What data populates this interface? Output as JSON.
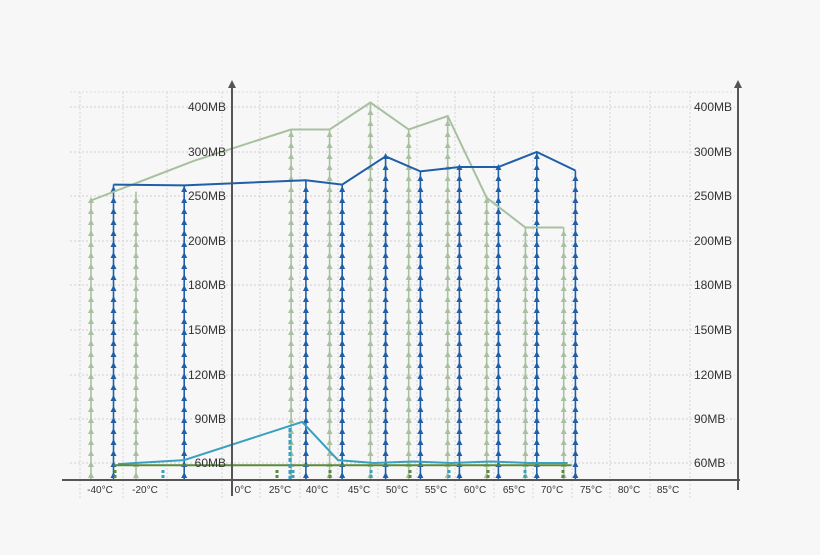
{
  "chart_data": {
    "type": "line",
    "title": "",
    "xlabel": "",
    "ylabel": "",
    "grid": true,
    "x_categories": [
      "-40°C",
      "-20°C",
      "0°C",
      "25°C",
      "40°C",
      "45°C",
      "50°C",
      "55°C",
      "60°C",
      "65°C",
      "70°C",
      "75°C",
      "80°C",
      "85°C"
    ],
    "y_ticks_left": [
      "60MB",
      "90MB",
      "120MB",
      "150MB",
      "180MB",
      "200MB",
      "250MB",
      "300MB",
      "400MB"
    ],
    "y_ticks_right": [
      "60MB",
      "90MB",
      "120MB",
      "150MB",
      "180MB",
      "200MB",
      "250MB",
      "300MB",
      "400MB"
    ],
    "series": [
      {
        "color": "#a8c0a0",
        "x": [
          -0.2,
          1.5,
          3.3,
          4.3,
          5.3,
          6.3,
          7.3,
          8.3,
          9.3,
          10.3
        ],
        "values": [
          245,
          290,
          350,
          350,
          410,
          350,
          380,
          248,
          215,
          215
        ]
      },
      {
        "color": "#1f5fa8",
        "x": [
          0.3,
          1.4,
          3.7,
          4.6,
          5.7,
          6.6,
          7.6,
          8.6,
          9.6,
          10.6
        ],
        "values": [
          263,
          262,
          268,
          263,
          295,
          278,
          283,
          283,
          300,
          279
        ]
      },
      {
        "color": "#3aa0c0",
        "x": [
          0.4,
          1.4,
          3.6,
          4.5,
          5.4,
          6.4,
          7.4,
          8.4,
          9.4,
          10.4
        ],
        "values": [
          59,
          62,
          88,
          62,
          60,
          61,
          60,
          61,
          60,
          60
        ]
      },
      {
        "color": "#5a8a3a",
        "x": [
          0.3,
          1.3,
          3.5,
          4.5,
          5.5,
          6.5,
          7.5,
          8.5,
          9.5,
          10.5
        ],
        "values": [
          58,
          58,
          58,
          58,
          58,
          58,
          58,
          58,
          58,
          58
        ]
      }
    ],
    "arrow_columns": [
      {
        "color": "#a8c0a0",
        "x": [
          -0.2,
          0.8,
          3.3,
          4.3,
          5.3,
          6.3,
          7.3,
          8.3,
          9.3,
          10.3
        ],
        "values": [
          245,
          255,
          350,
          350,
          410,
          350,
          380,
          248,
          215,
          215
        ]
      },
      {
        "color": "#1f5fa8",
        "x": [
          0.3,
          1.4,
          3.7,
          4.6,
          5.7,
          6.6,
          7.6,
          8.6,
          9.6,
          10.6
        ],
        "values": [
          263,
          262,
          268,
          263,
          295,
          278,
          283,
          283,
          300,
          279
        ]
      }
    ]
  }
}
